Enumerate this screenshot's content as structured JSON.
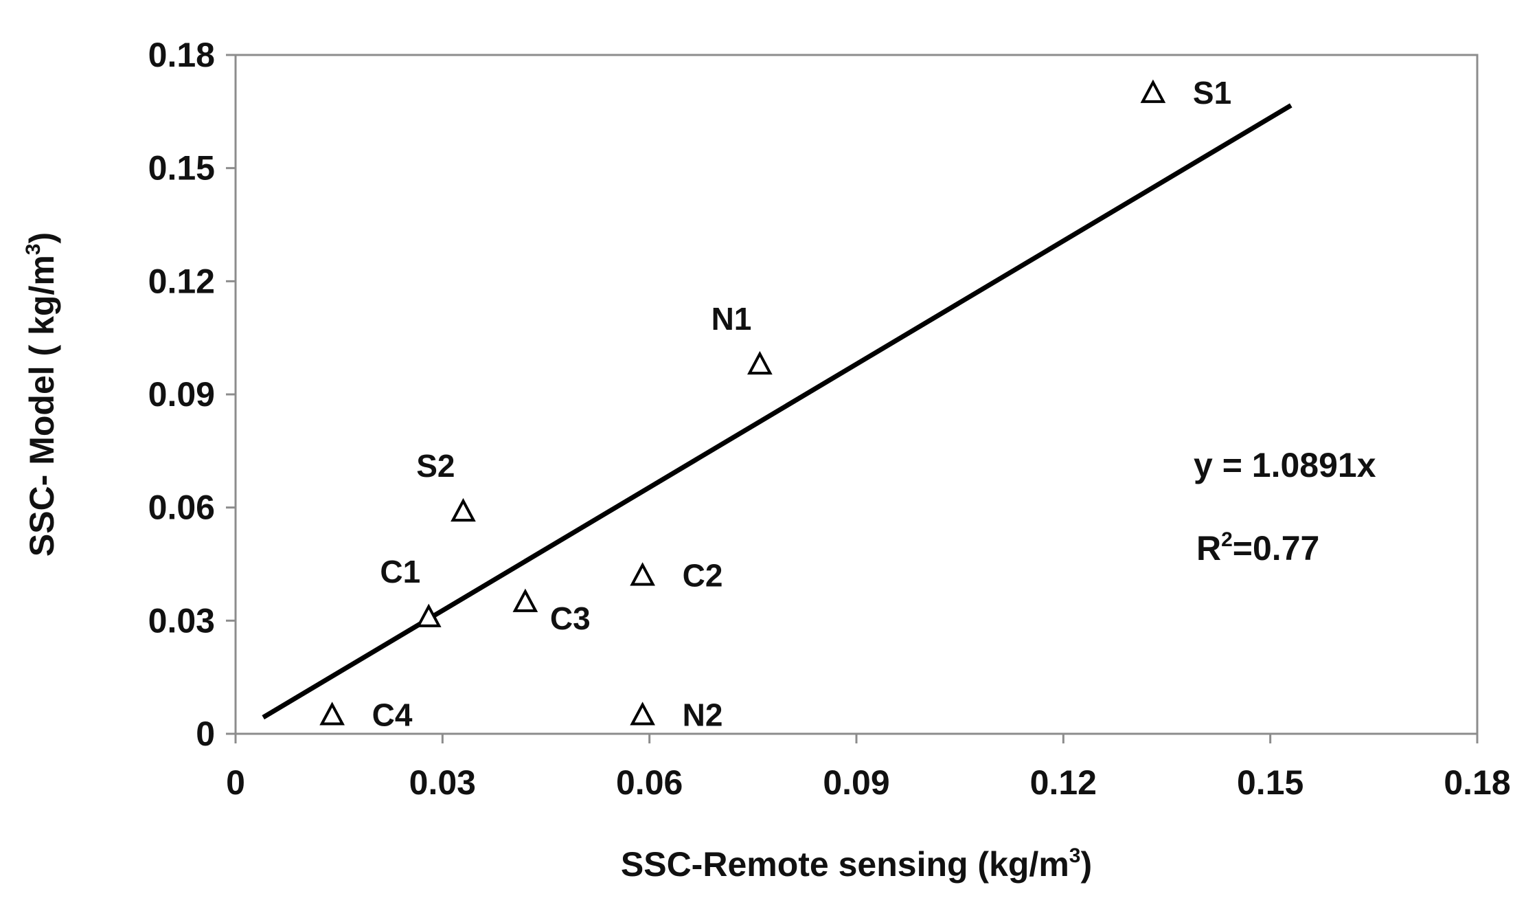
{
  "chart_data": {
    "type": "scatter",
    "xlabel": {
      "text": "SSC-Remote sensing (kg/m",
      "sup": "3",
      "close": ")"
    },
    "ylabel": {
      "text": "SSC- Model ( kg/m",
      "sup": "3",
      "close": ")"
    },
    "xlim": [
      0,
      0.18
    ],
    "ylim": [
      0,
      0.18
    ],
    "xticks": [
      "0",
      "0.03",
      "0.06",
      "0.09",
      "0.12",
      "0.15",
      "0.18"
    ],
    "yticks": [
      "0",
      "0.03",
      "0.06",
      "0.09",
      "0.12",
      "0.15",
      "0.18"
    ],
    "grid": false,
    "marker": "triangle-open",
    "points": [
      {
        "label": "S1",
        "x": 0.133,
        "y": 0.17,
        "label_pos": "right"
      },
      {
        "label": "N1",
        "x": 0.076,
        "y": 0.098,
        "label_pos": "above-left"
      },
      {
        "label": "S2",
        "x": 0.033,
        "y": 0.059,
        "label_pos": "above-left"
      },
      {
        "label": "C1",
        "x": 0.028,
        "y": 0.031,
        "label_pos": "above-left"
      },
      {
        "label": "C2",
        "x": 0.059,
        "y": 0.042,
        "label_pos": "right"
      },
      {
        "label": "C3",
        "x": 0.042,
        "y": 0.035,
        "label_pos": "below-right"
      },
      {
        "label": "C4",
        "x": 0.014,
        "y": 0.005,
        "label_pos": "right"
      },
      {
        "label": "N2",
        "x": 0.059,
        "y": 0.005,
        "label_pos": "right"
      }
    ],
    "trendline": {
      "slope": 1.0891,
      "intercept": 0,
      "x_range": [
        0.004,
        0.153
      ],
      "equation": "y = 1.0891x",
      "r2_prefix": "R",
      "r2_sup": "2",
      "r2_suffix": "=0.77"
    }
  }
}
